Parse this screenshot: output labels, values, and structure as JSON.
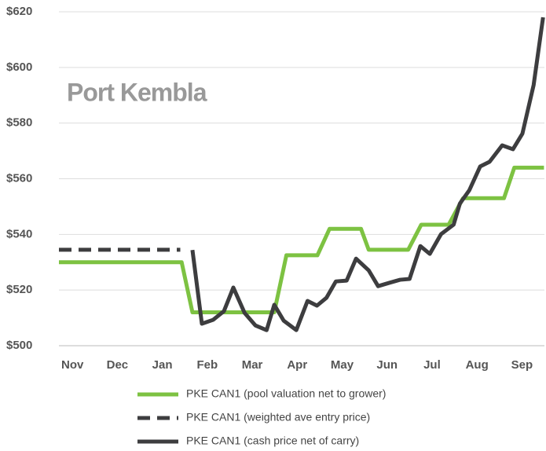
{
  "chart_data": {
    "type": "line",
    "title": "Port Kembla",
    "xlim": [
      -0.3,
      10.5
    ],
    "xticks": [
      {
        "value": 0,
        "label": "Nov"
      },
      {
        "value": 1,
        "label": "Dec"
      },
      {
        "value": 2,
        "label": "Jan"
      },
      {
        "value": 3,
        "label": "Feb"
      },
      {
        "value": 4,
        "label": "Mar"
      },
      {
        "value": 5,
        "label": "Apr"
      },
      {
        "value": 6,
        "label": "May"
      },
      {
        "value": 7,
        "label": "Jun"
      },
      {
        "value": 8,
        "label": "Jul"
      },
      {
        "value": 9,
        "label": "Aug"
      },
      {
        "value": 10,
        "label": "Sep"
      }
    ],
    "ylim": [
      500,
      620
    ],
    "yticks": [
      {
        "value": 500,
        "label": "$500"
      },
      {
        "value": 520,
        "label": "$520"
      },
      {
        "value": 540,
        "label": "$540"
      },
      {
        "value": 560,
        "label": "$560"
      },
      {
        "value": 580,
        "label": "$580"
      },
      {
        "value": 600,
        "label": "$600"
      },
      {
        "value": 620,
        "label": "$620"
      }
    ],
    "grid": true,
    "series": [
      {
        "name": "PKE CAN1 (pool valuation net to grower)",
        "color": "#7dc242",
        "dash": false,
        "x": [
          -0.3,
          2.43,
          2.67,
          4.49,
          4.76,
          5.45,
          5.72,
          6.42,
          6.59,
          7.47,
          7.76,
          8.37,
          8.69,
          9.6,
          9.83,
          10.49
        ],
        "values": [
          530,
          530,
          512,
          512,
          532.5,
          532.5,
          542,
          542,
          534.5,
          534.5,
          543.5,
          543.5,
          553,
          553,
          564,
          564
        ]
      },
      {
        "name": "PKE CAN1 (weighted ave entry price)",
        "color": "#3d3d3f",
        "dash": true,
        "x": [
          -0.3,
          2.4
        ],
        "values": [
          534.5,
          534.5
        ]
      },
      {
        "name": "PKE CAN1 (cash price net of carry)",
        "color": "#3d3d3f",
        "dash": false,
        "x": [
          2.67,
          2.88,
          3.13,
          3.37,
          3.58,
          3.83,
          4.07,
          4.32,
          4.49,
          4.7,
          4.98,
          5.23,
          5.44,
          5.65,
          5.86,
          6.1,
          6.31,
          6.59,
          6.8,
          7.05,
          7.29,
          7.5,
          7.74,
          7.95,
          8.2,
          8.48,
          8.62,
          8.83,
          9.07,
          9.28,
          9.56,
          9.8,
          10.01,
          10.26,
          10.47
        ],
        "values": [
          534.4,
          507.9,
          509.3,
          512.4,
          520.9,
          511.8,
          507.3,
          505.6,
          514.7,
          509,
          505.6,
          516.1,
          514.4,
          517.2,
          523.1,
          523.4,
          531.3,
          527.1,
          521.4,
          522.6,
          523.7,
          524,
          535.8,
          533,
          540.1,
          543.5,
          551.1,
          555.9,
          564.4,
          566.1,
          572,
          570.6,
          576.2,
          593.7,
          618
        ]
      }
    ]
  }
}
